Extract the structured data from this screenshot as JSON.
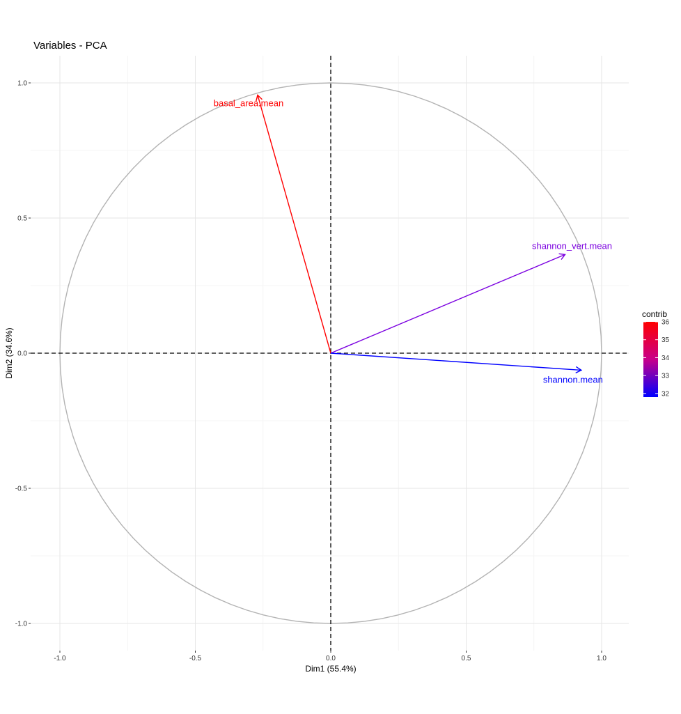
{
  "chart_data": {
    "type": "scatter",
    "title": "Variables - PCA",
    "xlabel": "Dim1 (55.4%)",
    "ylabel": "Dim2 (34.6%)",
    "xlim": [
      -1.1,
      1.1
    ],
    "ylim": [
      -1.1,
      1.1
    ],
    "xticks": [
      -1.0,
      -0.5,
      0.0,
      0.5,
      1.0
    ],
    "yticks": [
      -1.0,
      -0.5,
      0.0,
      0.5,
      1.0
    ],
    "xtick_labels": [
      "-1.0",
      "-0.5",
      "0.0",
      "0.5",
      "1.0"
    ],
    "ytick_labels": [
      "-1.0",
      "-0.5",
      "0.0",
      "0.5",
      "1.0"
    ],
    "grid": true,
    "unit_circle": true,
    "variables": [
      {
        "name": "basal_area.mean",
        "x": -0.27,
        "y": 0.955,
        "contrib": 35.9,
        "color": "#ff0000"
      },
      {
        "name": "shannon_vert.mean",
        "x": 0.865,
        "y": 0.365,
        "contrib": 32.6,
        "color": "#7b00e0"
      },
      {
        "name": "shannon.mean",
        "x": 0.925,
        "y": -0.063,
        "contrib": 31.9,
        "color": "#0000ff"
      }
    ],
    "legend": {
      "title": "contrib",
      "position": "right",
      "min": 31.8,
      "max": 36.0,
      "ticks": [
        36,
        35,
        34,
        33,
        32
      ],
      "tick_labels": [
        "36",
        "35",
        "34",
        "33",
        "32"
      ],
      "low_color": "#0000ff",
      "high_color": "#ff0000"
    }
  }
}
